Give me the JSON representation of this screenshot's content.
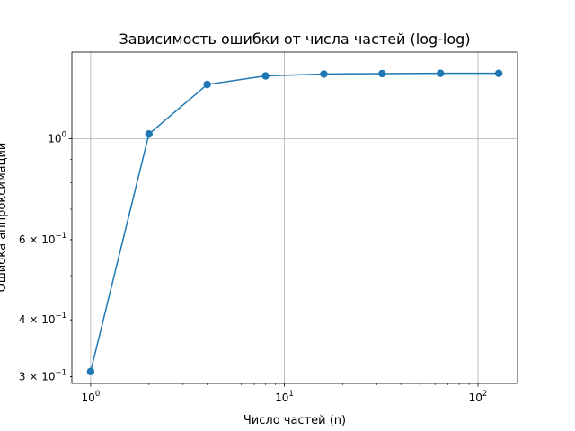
{
  "chart_data": {
    "type": "line",
    "title": "Зависимость ошибки от числа частей (log-log)",
    "xlabel": "Число частей (n)",
    "ylabel": "Ошибка аппроксимации",
    "xscale": "log",
    "yscale": "log",
    "xlim": [
      0.8,
      160
    ],
    "ylim": [
      0.29,
      1.55
    ],
    "grid": true,
    "legend": "none",
    "line_color": "#1f77b4",
    "x_ticks": [
      {
        "value": 1,
        "base": "10",
        "exp": "0"
      },
      {
        "value": 10,
        "base": "10",
        "exp": "1"
      },
      {
        "value": 100,
        "base": "10",
        "exp": "2"
      }
    ],
    "y_ticks": [
      {
        "value": 0.3,
        "mant": "3",
        "base": "10",
        "exp": "−1"
      },
      {
        "value": 0.4,
        "mant": "4",
        "base": "10",
        "exp": "−1"
      },
      {
        "value": 0.6,
        "mant": "6",
        "base": "10",
        "exp": "−1"
      },
      {
        "value": 1.0,
        "mant": "",
        "base": "10",
        "exp": "0"
      }
    ],
    "series": [
      {
        "x": [
          1,
          2,
          4,
          8,
          16,
          32,
          64,
          128
        ],
        "y": [
          0.308,
          1.024,
          1.316,
          1.374,
          1.387,
          1.39,
          1.392,
          1.392
        ]
      }
    ]
  }
}
